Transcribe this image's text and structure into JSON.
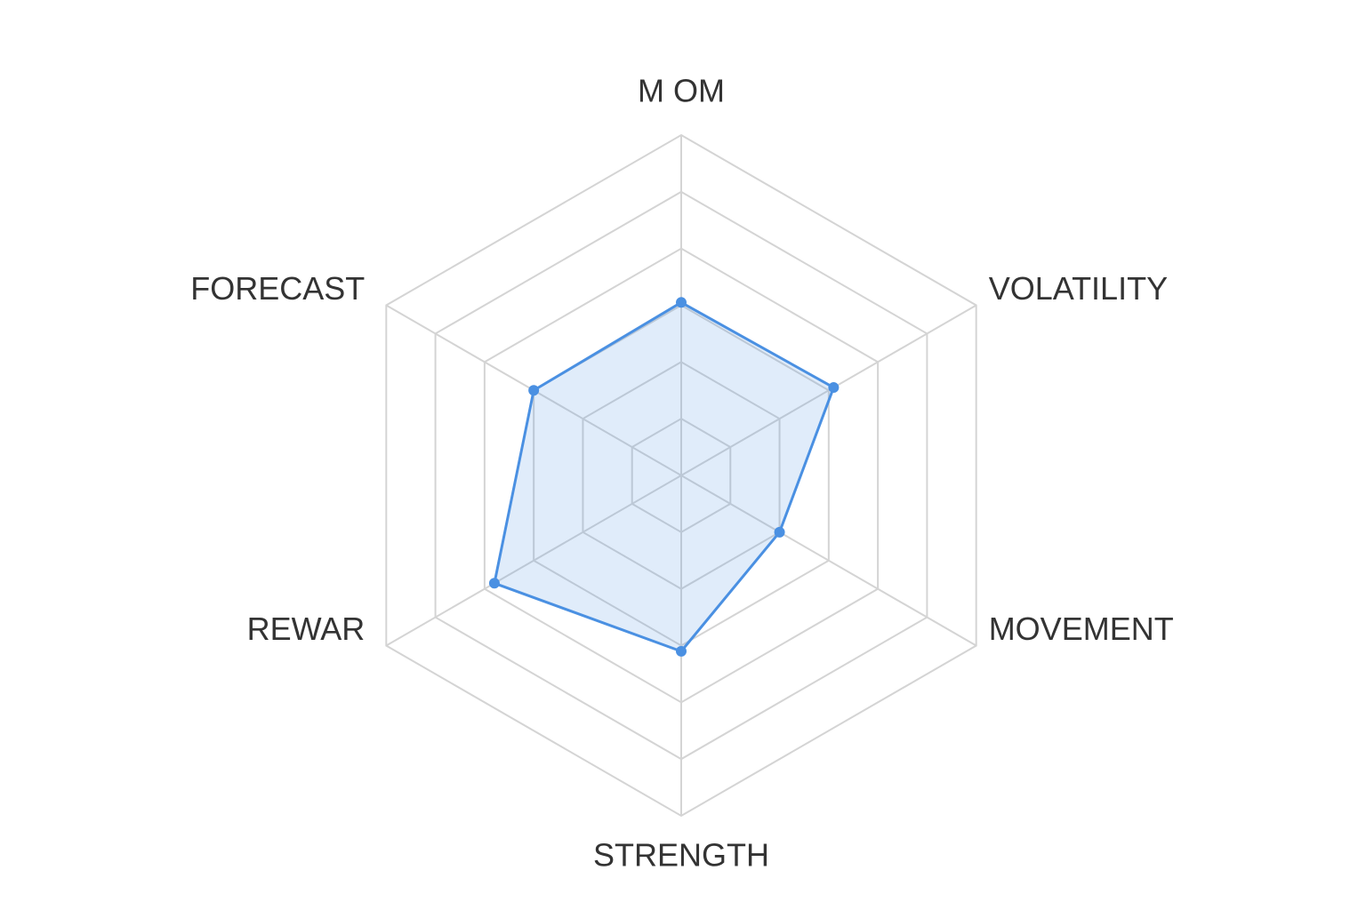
{
  "chart_data": {
    "type": "radar",
    "categories": [
      "M OM",
      "VOLATILITY",
      "MOVEMENT",
      "STRENGTH",
      "REWAR",
      "FORECAST"
    ],
    "values": [
      3.05,
      3.1,
      2,
      3.1,
      3.8,
      3
    ],
    "color": "#4a90e2",
    "rlim": [
      0,
      6
    ],
    "rticks": [
      1,
      2,
      3,
      4,
      5,
      6
    ],
    "grid": true
  }
}
